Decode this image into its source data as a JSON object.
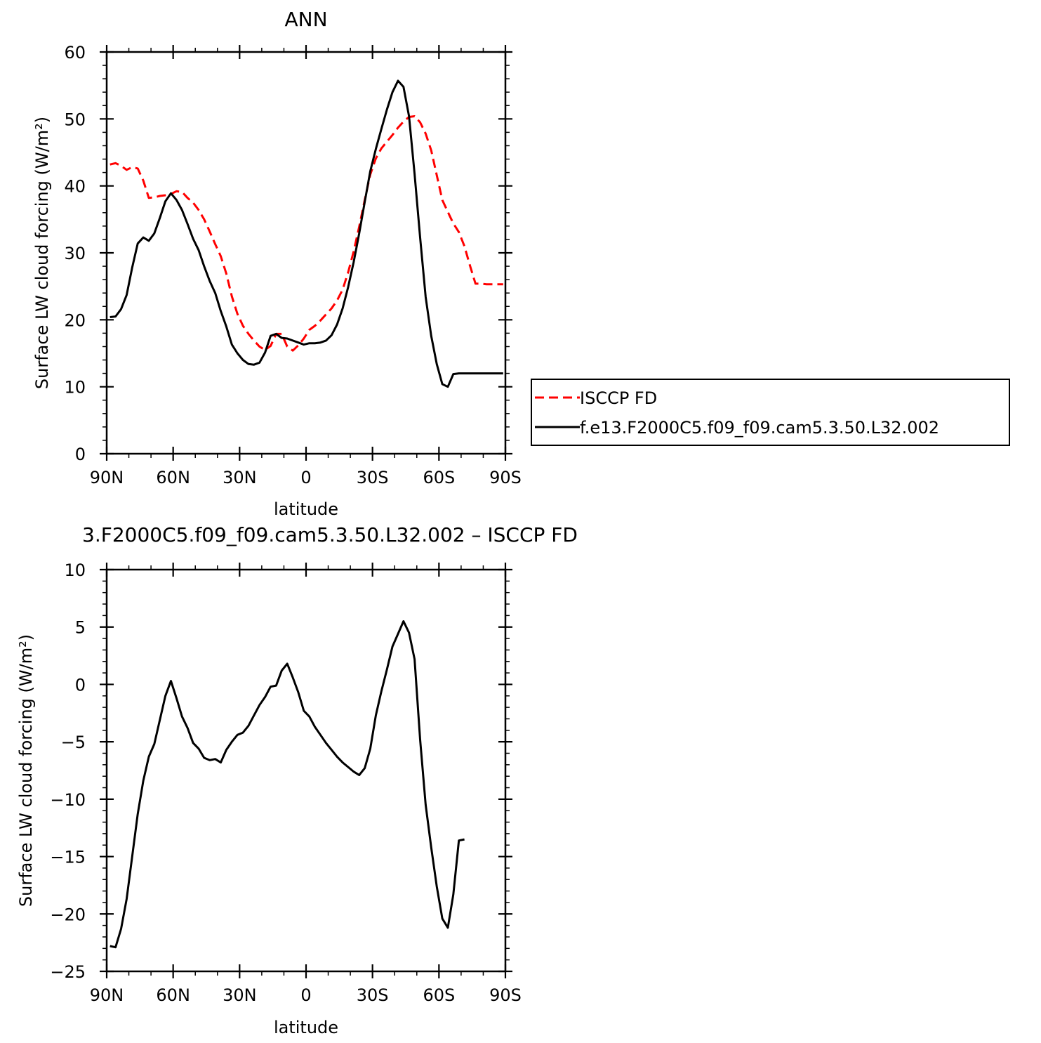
{
  "chart_data": [
    {
      "type": "line",
      "title": "ANN",
      "xlabel": "latitude",
      "ylabel": "Surface LW cloud forcing (W/m²)",
      "xlim": [
        -90,
        90
      ],
      "ylim": [
        0,
        60
      ],
      "x_tick_values": [
        -90,
        -60,
        -30,
        0,
        30,
        60,
        90
      ],
      "x_tick_labels": [
        "90N",
        "60N",
        "30N",
        "0",
        "30S",
        "60S",
        "90S"
      ],
      "y_tick_values": [
        0,
        10,
        20,
        30,
        40,
        50,
        60
      ],
      "y_tick_labels": [
        "0",
        "10",
        "20",
        "30",
        "40",
        "50",
        "60"
      ],
      "grid": false,
      "legend_position": "right",
      "x": [
        -88.5,
        -86,
        -83.5,
        -81,
        -78.5,
        -76,
        -73.5,
        -71,
        -68.5,
        -66,
        -63.5,
        -61,
        -58.5,
        -56,
        -53.5,
        -51,
        -48.5,
        -46,
        -43.5,
        -41,
        -38.5,
        -36,
        -33.5,
        -31,
        -28.5,
        -26,
        -23.5,
        -21,
        -18.5,
        -16,
        -13.5,
        -11,
        -8.5,
        -6,
        -3.5,
        -1,
        1.5,
        4,
        6.5,
        9,
        11.5,
        14,
        16.5,
        19,
        21.5,
        24,
        26.5,
        29,
        31.5,
        34,
        36.5,
        39,
        41.5,
        44,
        46.5,
        49,
        51.5,
        54,
        56.5,
        59,
        61.5,
        64,
        66.5,
        69,
        71.5,
        74,
        76.5,
        79,
        81.5,
        84,
        86.5,
        89
      ],
      "series": [
        {
          "name": "ISCCP FD",
          "color": "#ff0000",
          "dash": "dashed",
          "values": [
            43.2,
            43.4,
            43.0,
            42.4,
            42.8,
            42.6,
            40.8,
            38.2,
            38.3,
            38.5,
            38.6,
            38.8,
            39.2,
            39.1,
            38.2,
            37.5,
            36.4,
            35.0,
            33.2,
            31.3,
            29.5,
            26.9,
            23.5,
            20.9,
            19.1,
            17.9,
            16.9,
            16.0,
            15.5,
            16.1,
            17.9,
            17.9,
            16.0,
            15.4,
            16.2,
            17.2,
            18.5,
            19.1,
            19.9,
            20.8,
            21.7,
            22.9,
            24.5,
            27.1,
            30.2,
            33.9,
            37.9,
            41.7,
            44.1,
            45.6,
            46.6,
            47.6,
            48.7,
            49.6,
            50.3,
            50.4,
            49.5,
            47.8,
            45.3,
            41.6,
            37.9,
            36.1,
            34.4,
            33.1,
            31.0,
            28.1,
            25.4,
            25.4,
            25.3,
            25.3,
            25.3,
            25.3
          ]
        },
        {
          "name": "f.e13.F2000C5.f09_f09.cam5.3.50.L32.002",
          "color": "#000000",
          "dash": "solid",
          "values": [
            20.4,
            20.5,
            21.6,
            23.7,
            27.8,
            31.4,
            32.3,
            31.8,
            32.9,
            35.2,
            37.7,
            38.9,
            37.9,
            36.4,
            34.3,
            32.1,
            30.4,
            28.0,
            25.8,
            24.0,
            21.3,
            19.0,
            16.3,
            15.0,
            14.0,
            13.4,
            13.3,
            13.6,
            15.1,
            17.6,
            17.9,
            17.3,
            17.2,
            16.9,
            16.6,
            16.3,
            16.5,
            16.5,
            16.6,
            16.9,
            17.7,
            19.3,
            21.7,
            24.9,
            28.6,
            32.9,
            37.6,
            42.2,
            45.5,
            48.5,
            51.4,
            54.0,
            55.7,
            54.8,
            50.4,
            41.8,
            32.3,
            23.4,
            17.6,
            13.4,
            10.4,
            10.0,
            11.9,
            12.0,
            12.0,
            12.0,
            12.0,
            12.0,
            12.0,
            12.0,
            12.0,
            12.0
          ]
        }
      ]
    },
    {
      "type": "line",
      "title": "3.F2000C5.f09_f09.cam5.3.50.L32.002 – ISCCP FD",
      "xlabel": "latitude",
      "ylabel": "Surface LW cloud forcing (W/m²)",
      "xlim": [
        -90,
        90
      ],
      "ylim": [
        -25,
        10
      ],
      "x_tick_values": [
        -90,
        -60,
        -30,
        0,
        30,
        60,
        90
      ],
      "x_tick_labels": [
        "90N",
        "60N",
        "30N",
        "0",
        "30S",
        "60S",
        "90S"
      ],
      "y_tick_values": [
        -25,
        -20,
        -15,
        -10,
        -5,
        0,
        5,
        10
      ],
      "y_tick_labels": [
        "−25",
        "−20",
        "−15",
        "−10",
        "−5",
        "0",
        "5",
        "10"
      ],
      "grid": false,
      "series": [
        {
          "color": "#000000",
          "dash": "solid",
          "values": [
            -22.8,
            -22.9,
            -21.3,
            -18.7,
            -15.0,
            -11.3,
            -8.4,
            -6.3,
            -5.2,
            -3.1,
            -1.0,
            0.3,
            -1.2,
            -2.8,
            -3.8,
            -5.1,
            -5.6,
            -6.4,
            -6.6,
            -6.5,
            -6.8,
            -5.7,
            -5.0,
            -4.4,
            -4.2,
            -3.6,
            -2.7,
            -1.8,
            -1.1,
            -0.2,
            -0.1,
            1.2,
            1.8,
            0.6,
            -0.7,
            -2.3,
            -2.8,
            -3.7,
            -4.4,
            -5.1,
            -5.7,
            -6.3,
            -6.8,
            -7.2,
            -7.6,
            -7.9,
            -7.3,
            -5.6,
            -2.7,
            -0.6,
            1.3,
            3.3,
            4.4,
            5.5,
            4.5,
            2.2,
            -4.8,
            -10.5,
            -14.2,
            -17.6,
            -20.4,
            -21.2,
            -18.3,
            -13.6,
            -13.5
          ]
        }
      ]
    }
  ]
}
